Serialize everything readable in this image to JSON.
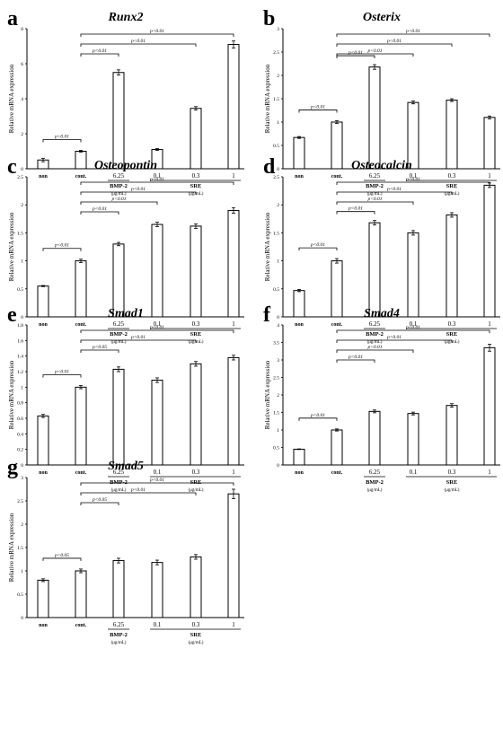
{
  "figure": {
    "ylabel": "Relative mRNA expression",
    "dose_unit": "(μg/mL)",
    "bmp_label": "BMP-2",
    "sre_label": "SRE"
  },
  "chart_data": [
    {
      "type": "bar",
      "letter": "a",
      "title": "Runx2",
      "categories": [
        "non",
        "cont.",
        "6.25",
        "0.1",
        "0.3",
        "1"
      ],
      "values": [
        0.5,
        1.0,
        5.5,
        1.1,
        3.45,
        7.1
      ],
      "errors": [
        0.1,
        0.05,
        0.15,
        0.05,
        0.1,
        0.2
      ],
      "ylim": [
        0,
        8
      ],
      "yticks": [
        "0",
        "2",
        "4",
        "6",
        "8"
      ],
      "annotations": [
        {
          "from": 0,
          "to": 1,
          "text": "p<0.01"
        },
        {
          "from": 1,
          "to": 2,
          "text": "p<0.01"
        },
        {
          "from": 1,
          "to": 4,
          "text": "p<0.01"
        },
        {
          "from": 1,
          "to": 5,
          "text": "p<0.01"
        }
      ]
    },
    {
      "type": "bar",
      "letter": "b",
      "title": "Osterix",
      "categories": [
        "non",
        "cont.",
        "6.25",
        "0.1",
        "0.3",
        "1"
      ],
      "values": [
        0.67,
        1.0,
        2.18,
        1.42,
        1.47,
        1.1
      ],
      "errors": [
        0.02,
        0.03,
        0.05,
        0.03,
        0.03,
        0.03
      ],
      "ylim": [
        0,
        3
      ],
      "yticks": [
        "0",
        "0.5",
        "1",
        "1.5",
        "2",
        "2.5",
        "3"
      ],
      "annotations": [
        {
          "from": 0,
          "to": 1,
          "text": "p<0.01"
        },
        {
          "from": 1,
          "to": 2,
          "text": "p<0.01"
        },
        {
          "from": 1,
          "to": 3,
          "text": "p<0.01"
        },
        {
          "from": 1,
          "to": 4,
          "text": "p<0.01"
        },
        {
          "from": 1,
          "to": 5,
          "text": "p<0.01"
        }
      ]
    },
    {
      "type": "bar",
      "letter": "c",
      "title": "Osteopontin",
      "categories": [
        "non",
        "cont.",
        "6.25",
        "0.1",
        "0.3",
        "1"
      ],
      "values": [
        0.55,
        1.0,
        1.3,
        1.65,
        1.62,
        1.9
      ],
      "errors": [
        0.01,
        0.03,
        0.03,
        0.04,
        0.04,
        0.05
      ],
      "ylim": [
        0,
        2.5
      ],
      "yticks": [
        "0",
        "0.5",
        "1",
        "1.5",
        "2",
        "2.5"
      ],
      "annotations": [
        {
          "from": 0,
          "to": 1,
          "text": "p<0.01"
        },
        {
          "from": 1,
          "to": 2,
          "text": "p<0.01"
        },
        {
          "from": 1,
          "to": 3,
          "text": "p<0.01"
        },
        {
          "from": 1,
          "to": 4,
          "text": "p<0.01"
        },
        {
          "from": 1,
          "to": 5,
          "text": "p<0.01"
        }
      ]
    },
    {
      "type": "bar",
      "letter": "d",
      "title": "Osteocalcin",
      "categories": [
        "non",
        "cont.",
        "6.25",
        "0.1",
        "0.3",
        "1"
      ],
      "values": [
        0.47,
        1.0,
        1.68,
        1.5,
        1.82,
        2.35
      ],
      "errors": [
        0.02,
        0.04,
        0.04,
        0.04,
        0.04,
        0.04
      ],
      "ylim": [
        0,
        2.5
      ],
      "yticks": [
        "0",
        "0.5",
        "1",
        "1.5",
        "2",
        "2.5"
      ],
      "annotations": [
        {
          "from": 0,
          "to": 1,
          "text": "p<0.01"
        },
        {
          "from": 1,
          "to": 2,
          "text": "p<0.01"
        },
        {
          "from": 1,
          "to": 3,
          "text": "p<0.01"
        },
        {
          "from": 1,
          "to": 4,
          "text": "p<0.01"
        },
        {
          "from": 1,
          "to": 5,
          "text": "p<0.01"
        }
      ]
    },
    {
      "type": "bar",
      "letter": "e",
      "title": "Smad1",
      "categories": [
        "non",
        "cont.",
        "6.25",
        "0.1",
        "0.3",
        "1"
      ],
      "values": [
        0.63,
        1.0,
        1.23,
        1.09,
        1.3,
        1.38
      ],
      "errors": [
        0.02,
        0.02,
        0.03,
        0.03,
        0.03,
        0.03
      ],
      "ylim": [
        0,
        1.8
      ],
      "yticks": [
        "0",
        "0.2",
        "0.4",
        "0.6",
        "0.8",
        "1",
        "1.2",
        "1.4",
        "1.6",
        "1.8"
      ],
      "annotations": [
        {
          "from": 0,
          "to": 1,
          "text": "p<0.01"
        },
        {
          "from": 1,
          "to": 2,
          "text": "p<0.05"
        },
        {
          "from": 1,
          "to": 4,
          "text": "p<0.01"
        },
        {
          "from": 1,
          "to": 5,
          "text": "p<0.01"
        }
      ]
    },
    {
      "type": "bar",
      "letter": "f",
      "title": "Smad4",
      "categories": [
        "non",
        "cont.",
        "6.25",
        "0.1",
        "0.3",
        "1"
      ],
      "values": [
        0.45,
        1.0,
        1.53,
        1.47,
        1.7,
        3.35
      ],
      "errors": [
        0.01,
        0.03,
        0.04,
        0.04,
        0.05,
        0.1
      ],
      "ylim": [
        0,
        4
      ],
      "yticks": [
        "0",
        "0.5",
        "1",
        "1.5",
        "2",
        "2.5",
        "3",
        "3.5",
        "4"
      ],
      "annotations": [
        {
          "from": 0,
          "to": 1,
          "text": "p<0.01"
        },
        {
          "from": 1,
          "to": 2,
          "text": "p<0.01"
        },
        {
          "from": 1,
          "to": 3,
          "text": "p<0.01"
        },
        {
          "from": 1,
          "to": 4,
          "text": "p<0.01"
        },
        {
          "from": 1,
          "to": 5,
          "text": "p<0.01"
        }
      ]
    },
    {
      "type": "bar",
      "letter": "g",
      "title": "Smad5",
      "categories": [
        "non",
        "cont.",
        "6.25",
        "0.1",
        "0.3",
        "1"
      ],
      "values": [
        0.8,
        1.0,
        1.22,
        1.18,
        1.3,
        2.65
      ],
      "errors": [
        0.03,
        0.04,
        0.05,
        0.05,
        0.05,
        0.1
      ],
      "ylim": [
        0,
        3
      ],
      "yticks": [
        "0",
        "0.5",
        "1",
        "1.5",
        "2",
        "2.5",
        "3"
      ],
      "annotations": [
        {
          "from": 0,
          "to": 1,
          "text": "p<0.05"
        },
        {
          "from": 1,
          "to": 2,
          "text": "p<0.05"
        },
        {
          "from": 1,
          "to": 4,
          "text": "p<0.01"
        },
        {
          "from": 1,
          "to": 5,
          "text": "p<0.01"
        }
      ]
    }
  ]
}
